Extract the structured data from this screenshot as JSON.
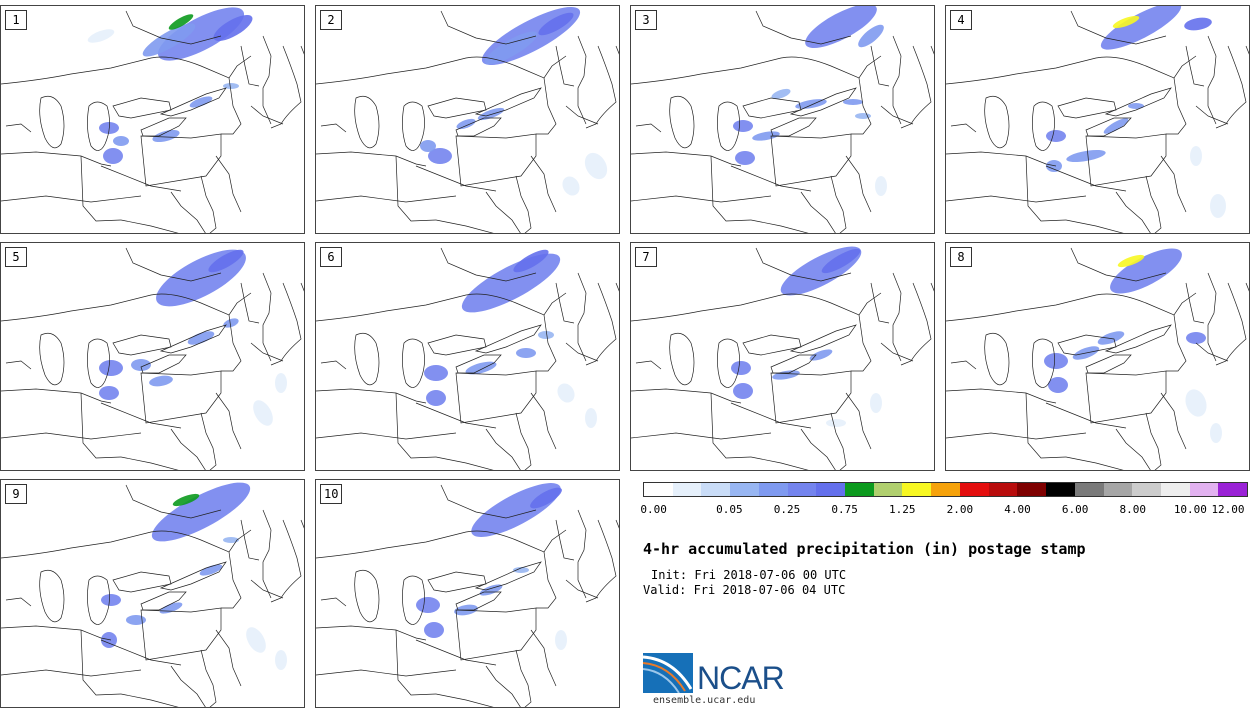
{
  "panels": [
    {
      "label": "1"
    },
    {
      "label": "2"
    },
    {
      "label": "3"
    },
    {
      "label": "4"
    },
    {
      "label": "5"
    },
    {
      "label": "6"
    },
    {
      "label": "7"
    },
    {
      "label": "8"
    },
    {
      "label": "9"
    },
    {
      "label": "10"
    }
  ],
  "legend": {
    "colors": [
      "#ffffff",
      "#e6f0fb",
      "#c9dcf7",
      "#98b6f2",
      "#7f9af0",
      "#7484ee",
      "#6470ec",
      "#0c9a1e",
      "#b0cf6e",
      "#f7f722",
      "#f6a20b",
      "#e40e0e",
      "#b80c0c",
      "#7e0000",
      "#000000",
      "#7a7a7a",
      "#a6a6a6",
      "#cccccc",
      "#eeeeee",
      "#e2b2f0",
      "#9a22d6"
    ],
    "tick_labels": [
      "0.00",
      "0.05",
      "0.25",
      "0.75",
      "1.25",
      "2.00",
      "4.00",
      "6.00",
      "8.00",
      "10.00",
      "12.00"
    ]
  },
  "title": "4-hr accumulated precipitation (in) postage stamp",
  "init": "Init: Fri 2018-07-06 00 UTC",
  "valid": "Valid: Fri 2018-07-06 04 UTC",
  "logo": {
    "text": "NCAR",
    "site": "ensemble.ucar.edu"
  }
}
